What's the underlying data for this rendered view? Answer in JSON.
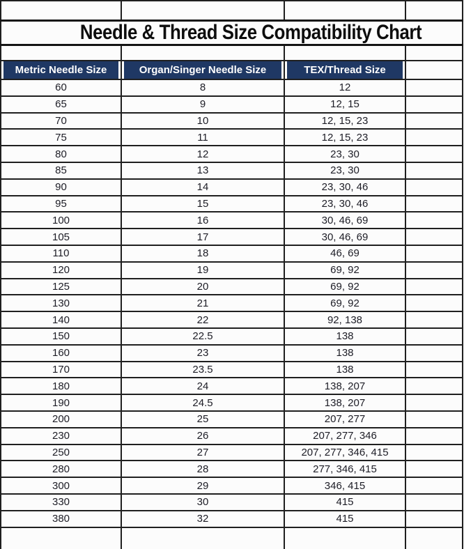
{
  "chart_data": {
    "type": "table",
    "title": "Needle & Thread Size Compatibility Chart",
    "columns": [
      "Metric Needle Size",
      "Organ/Singer Needle Size",
      "TEX/Thread Size"
    ],
    "rows": [
      [
        "60",
        "8",
        "12"
      ],
      [
        "65",
        "9",
        "12, 15"
      ],
      [
        "70",
        "10",
        "12, 15, 23"
      ],
      [
        "75",
        "11",
        "12, 15, 23"
      ],
      [
        "80",
        "12",
        "23, 30"
      ],
      [
        "85",
        "13",
        "23, 30"
      ],
      [
        "90",
        "14",
        "23, 30, 46"
      ],
      [
        "95",
        "15",
        "23, 30, 46"
      ],
      [
        "100",
        "16",
        "30, 46, 69"
      ],
      [
        "105",
        "17",
        "30, 46, 69"
      ],
      [
        "110",
        "18",
        "46, 69"
      ],
      [
        "120",
        "19",
        "69, 92"
      ],
      [
        "125",
        "20",
        "69, 92"
      ],
      [
        "130",
        "21",
        "69, 92"
      ],
      [
        "140",
        "22",
        "92, 138"
      ],
      [
        "150",
        "22.5",
        "138"
      ],
      [
        "160",
        "23",
        "138"
      ],
      [
        "170",
        "23.5",
        "138"
      ],
      [
        "180",
        "24",
        "138, 207"
      ],
      [
        "190",
        "24.5",
        "138, 207"
      ],
      [
        "200",
        "25",
        "207, 277"
      ],
      [
        "230",
        "26",
        "207, 277, 346"
      ],
      [
        "250",
        "27",
        "207, 277, 346, 415"
      ],
      [
        "280",
        "28",
        "277, 346, 415"
      ],
      [
        "300",
        "29",
        "346, 415"
      ],
      [
        "330",
        "30",
        "415"
      ],
      [
        "380",
        "32",
        "415"
      ]
    ],
    "layout": {
      "grid": true,
      "empty_right_column": true,
      "header_position": "top"
    },
    "colors": {
      "header_bg": "#1f3864",
      "header_text": "#ffffff",
      "grid_line": "#1f1f1f",
      "body_text": "#1d1d26",
      "background": "#fcfcfc"
    }
  }
}
